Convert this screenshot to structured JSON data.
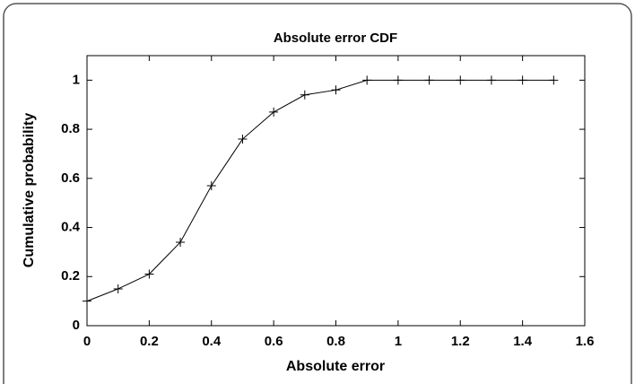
{
  "chart_data": {
    "type": "line",
    "title": "Absolute error CDF",
    "x_label": "Absolute error",
    "y_label": "Cumulative probability",
    "x": [
      0,
      0.1,
      0.2,
      0.3,
      0.4,
      0.5,
      0.6,
      0.7,
      0.8,
      0.9,
      1,
      1.1,
      1.2,
      1.3,
      1.4,
      1.5
    ],
    "values": [
      0.1,
      0.15,
      0.21,
      0.34,
      0.57,
      0.76,
      0.87,
      0.94,
      0.96,
      1,
      1,
      1,
      1,
      1,
      1,
      1
    ],
    "color": "#000000",
    "marker": "+",
    "xlim": [
      0,
      1.6
    ],
    "xticks": [
      0,
      0.2,
      0.4,
      0.6,
      0.8,
      1,
      1.2,
      1.4,
      1.6
    ],
    "ylim": [
      0,
      1.1
    ],
    "yticks": [
      0,
      0.2,
      0.4,
      0.6,
      0.8,
      1
    ],
    "grid": false
  }
}
